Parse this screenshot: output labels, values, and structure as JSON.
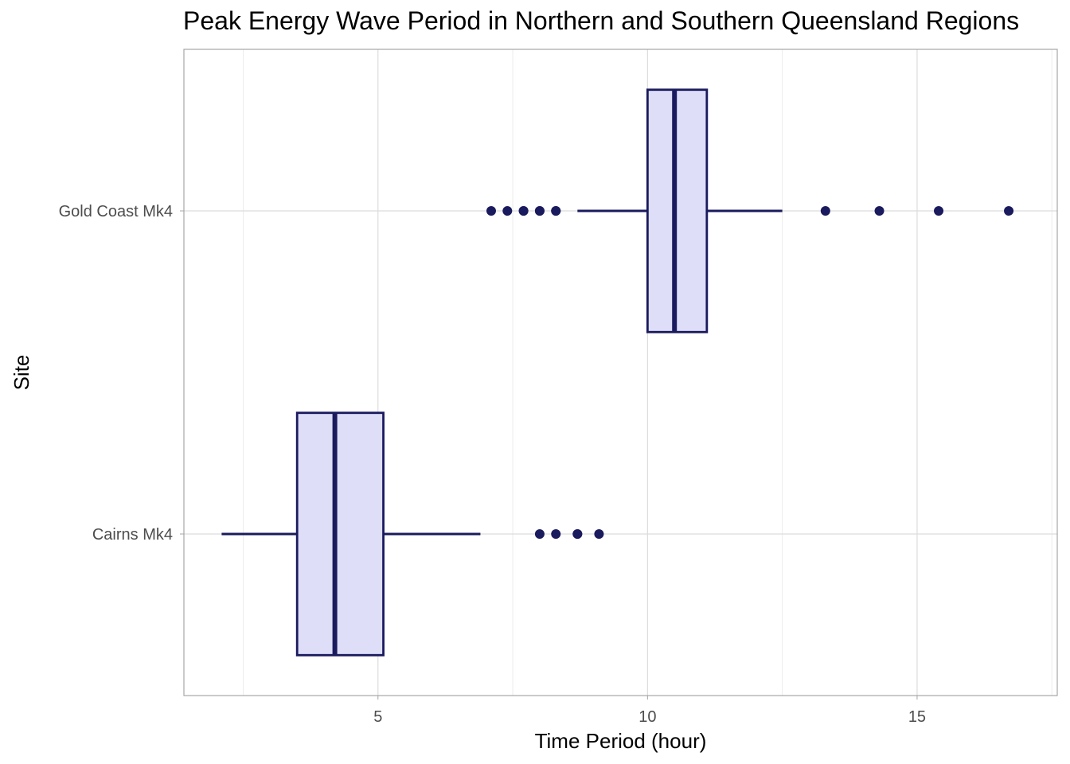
{
  "chart_data": {
    "type": "boxplot",
    "orientation": "horizontal",
    "title": "Peak Energy Wave Period in Northern and Southern Queensland Regions",
    "xlabel": "Time Period (hour)",
    "ylabel": "Site",
    "xlim": [
      1.4,
      17.6
    ],
    "x_ticks": [
      5,
      10,
      15
    ],
    "x_minor_ticks": [
      2.5,
      7.5,
      12.5,
      17.5
    ],
    "categories": [
      "Cairns Mk4",
      "Gold Coast Mk4"
    ],
    "boxes": [
      {
        "category": "Cairns Mk4",
        "whisker_low": 2.1,
        "q1": 3.5,
        "median": 4.2,
        "q3": 5.1,
        "whisker_high": 6.9,
        "outliers": [
          8.0,
          8.3,
          8.7,
          8.7,
          9.1
        ]
      },
      {
        "category": "Gold Coast Mk4",
        "whisker_low": 8.7,
        "q1": 10.0,
        "median": 10.5,
        "q3": 11.1,
        "whisker_high": 12.5,
        "outliers": [
          7.1,
          7.4,
          7.7,
          7.7,
          8.0,
          8.0,
          8.3,
          8.3,
          13.3,
          14.3,
          15.4,
          16.7
        ]
      }
    ],
    "grid": true,
    "legend": "none",
    "colors": {
      "box_fill": "#dedef8",
      "box_stroke": "#1a1a5e",
      "outlier": "#1a1a5e",
      "grid": "#dcdcdc",
      "panel_border": "#a6a6a6"
    }
  }
}
